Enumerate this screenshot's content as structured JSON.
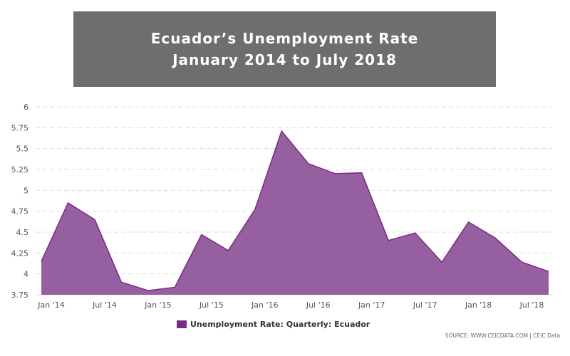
{
  "title": {
    "line1": "Ecuador’s Unemployment Rate",
    "line2": "January 2014 to July 2018"
  },
  "legend": {
    "label": "Unemployment Rate: Quarterly: Ecuador",
    "color": "#7b2a82"
  },
  "source": "SOURCE: WWW.CEICDATA.COM | CEIC Data",
  "colors": {
    "title_bg": "#6e6e6e",
    "area_fill": "#9660a0",
    "area_line": "#7b2a82",
    "grid": "#dddddd"
  },
  "chart_data": {
    "type": "area",
    "x": [
      "Jan '14",
      "Apr '14",
      "Jul '14",
      "Oct '14",
      "Jan '15",
      "Apr '15",
      "Jul '15",
      "Oct '15",
      "Jan '16",
      "Apr '16",
      "Jul '16",
      "Oct '16",
      "Jan '17",
      "Apr '17",
      "Jul '17",
      "Oct '17",
      "Jan '18",
      "Apr '18",
      "Jul '18",
      "Oct '18"
    ],
    "series": [
      {
        "name": "Unemployment Rate: Quarterly: Ecuador",
        "values": [
          4.15,
          4.85,
          4.65,
          3.9,
          3.8,
          3.84,
          4.47,
          4.28,
          4.77,
          5.71,
          5.32,
          5.2,
          5.21,
          4.4,
          4.49,
          4.14,
          4.62,
          4.43,
          4.14,
          4.03
        ]
      }
    ],
    "tick_labels_x": [
      "Jan '14",
      "Jul '14",
      "Jan '15",
      "Jul '15",
      "Jan '16",
      "Jul '16",
      "Jan '17",
      "Jul '17",
      "Jan '18",
      "Jul '18"
    ],
    "yticks": [
      3.75,
      4,
      4.25,
      4.5,
      4.75,
      5,
      5.25,
      5.5,
      5.75,
      6
    ],
    "ylim": [
      3.75,
      6
    ],
    "grid": true,
    "legend_position": "bottom-center"
  }
}
